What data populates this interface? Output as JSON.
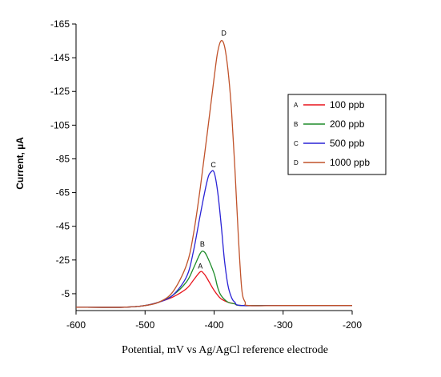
{
  "chart_data": {
    "type": "line",
    "title": "",
    "xlabel": "Potential, mV vs Ag/AgCl reference electrode",
    "ylabel": "Current, µA",
    "xlim": [
      -600,
      -200
    ],
    "ylim": [
      5,
      -165
    ],
    "x_ticks": [
      "-600",
      "-500",
      "-400",
      "-300",
      "-200"
    ],
    "y_ticks": [
      "-165",
      "-145",
      "-125",
      "-105",
      "-85",
      "-65",
      "-45",
      "-25",
      "-5"
    ],
    "x_tick_values": [
      -600,
      -500,
      -400,
      -300,
      -200
    ],
    "y_tick_values": [
      -165,
      -145,
      -125,
      -105,
      -85,
      -65,
      -45,
      -25,
      -5
    ],
    "grid": false,
    "legend_position": "right",
    "series": [
      {
        "name": "100 ppb",
        "letter": "A",
        "color": "#e8141c",
        "x": [
          -600,
          -530,
          -500,
          -480,
          -460,
          -440,
          -430,
          -420,
          -415,
          -410,
          -400,
          -390,
          -380,
          -370,
          -360,
          -300,
          -200
        ],
        "y": [
          3,
          3,
          2,
          0,
          -3,
          -8,
          -13,
          -18,
          -17,
          -14,
          -7,
          -2,
          0,
          1,
          2,
          2,
          2
        ]
      },
      {
        "name": "200 ppb",
        "letter": "B",
        "color": "#1e8c2a",
        "x": [
          -600,
          -530,
          -500,
          -480,
          -460,
          -440,
          -430,
          -420,
          -415,
          -410,
          -400,
          -395,
          -390,
          -380,
          -370,
          -360,
          -300,
          -200
        ],
        "y": [
          3,
          3,
          2,
          0,
          -4,
          -12,
          -20,
          -29,
          -30,
          -27,
          -17,
          -9,
          -4,
          0,
          1,
          2,
          2,
          2
        ]
      },
      {
        "name": "500 ppb",
        "letter": "C",
        "color": "#2a23d6",
        "x": [
          -600,
          -530,
          -500,
          -480,
          -460,
          -440,
          -430,
          -420,
          -410,
          -405,
          -400,
          -395,
          -390,
          -385,
          -380,
          -375,
          -370,
          -360,
          -300,
          -200
        ],
        "y": [
          3,
          3,
          2,
          0,
          -4,
          -15,
          -30,
          -52,
          -72,
          -77,
          -77,
          -66,
          -47,
          -25,
          -10,
          -3,
          0,
          2,
          2,
          2
        ]
      },
      {
        "name": "1000 ppb",
        "letter": "D",
        "color": "#c0522a",
        "x": [
          -600,
          -530,
          -500,
          -480,
          -460,
          -440,
          -430,
          -420,
          -410,
          -400,
          -395,
          -390,
          -385,
          -380,
          -375,
          -370,
          -365,
          -360,
          -355,
          -350,
          -300,
          -200
        ],
        "y": [
          3,
          3,
          2,
          0,
          -6,
          -22,
          -40,
          -68,
          -100,
          -133,
          -148,
          -155,
          -152,
          -138,
          -115,
          -80,
          -40,
          -8,
          0,
          2,
          2,
          2
        ]
      }
    ],
    "peak_labels": [
      {
        "text": "A",
        "x": -420,
        "y": -20
      },
      {
        "text": "B",
        "x": -417,
        "y": -33
      },
      {
        "text": "C",
        "x": -401,
        "y": -80
      },
      {
        "text": "D",
        "x": -386,
        "y": -158
      }
    ]
  }
}
